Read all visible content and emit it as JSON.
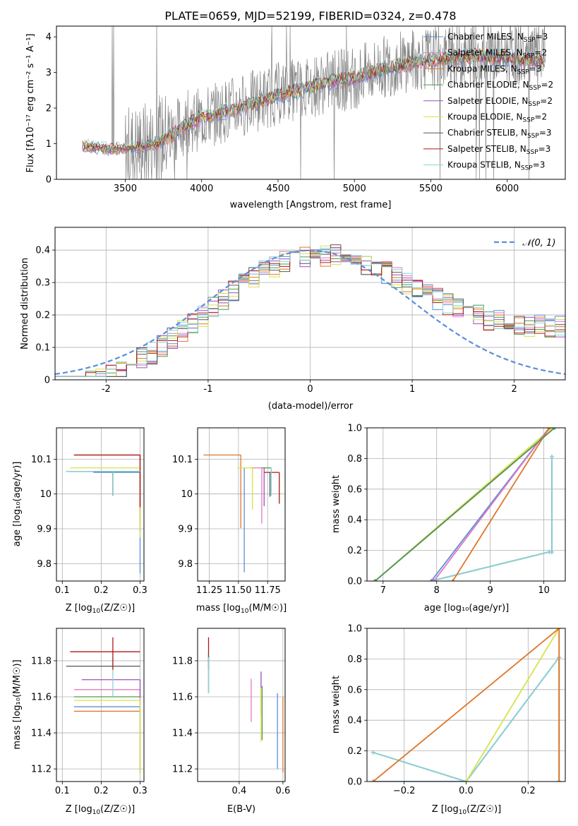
{
  "figure_title": "PLATE=0659, MJD=52199, FIBERID=0324, z=0.478",
  "series": [
    {
      "name_pre": "Chabrier MILES, N",
      "name_sub": "SSP",
      "name_post": "=3",
      "color": "#5b8fd9"
    },
    {
      "name_pre": "Salpeter MILES, N",
      "name_sub": "SSP",
      "name_post": "=2",
      "color": "#e377c2"
    },
    {
      "name_pre": "Kroupa MILES, N",
      "name_sub": "SSP",
      "name_post": "=3",
      "color": "#e0762a"
    },
    {
      "name_pre": "Chabrier ELODIE, N",
      "name_sub": "SSP",
      "name_post": "=2",
      "color": "#4f9a4f"
    },
    {
      "name_pre": "Salpeter ELODIE, N",
      "name_sub": "SSP",
      "name_post": "=2",
      "color": "#9b4fb8"
    },
    {
      "name_pre": "Kroupa ELODIE, N",
      "name_sub": "SSP",
      "name_post": "=2",
      "color": "#d7e34a"
    },
    {
      "name_pre": "Chabrier STELIB, N",
      "name_sub": "SSP",
      "name_post": "=3",
      "color": "#555555"
    },
    {
      "name_pre": "Salpeter STELIB, N",
      "name_sub": "SSP",
      "name_post": "=3",
      "color": "#b01818"
    },
    {
      "name_pre": "Kroupa STELIB, N",
      "name_sub": "SSP",
      "name_post": "=3",
      "color": "#88d4d8"
    }
  ],
  "colors": {
    "data": "#808080",
    "gaussian": "#5b8fd9",
    "grid": "#b0b0b0"
  },
  "chart_data": [
    {
      "id": "spectrum",
      "type": "line",
      "xlabel": "wavelength [Angstrom, rest frame]",
      "ylabel": "Flux [f_λ 10^-17 erg cm^-2 s^-1 A^-1]",
      "xlim": [
        3050,
        6380
      ],
      "ylim": [
        0,
        4.3
      ],
      "xticks": [
        3500,
        4000,
        4500,
        5000,
        5500,
        6000
      ],
      "yticks": [
        0,
        1,
        2,
        3,
        4
      ],
      "grid": false,
      "legend_position": "top-right",
      "data_series": {
        "name": "data",
        "x_range": [
          3220,
          6250
        ],
        "continuum": [
          [
            3220,
            0.9
          ],
          [
            3500,
            0.8
          ],
          [
            3700,
            1.0
          ],
          [
            3900,
            1.6
          ],
          [
            4000,
            1.7
          ],
          [
            4200,
            2.0
          ],
          [
            4500,
            2.4
          ],
          [
            4800,
            2.7
          ],
          [
            5000,
            2.85
          ],
          [
            5300,
            3.3
          ],
          [
            5500,
            3.4
          ],
          [
            5800,
            3.5
          ],
          [
            6000,
            3.5
          ],
          [
            6250,
            3.4
          ]
        ]
      },
      "model_continuum": [
        [
          3220,
          0.95
        ],
        [
          3400,
          0.85
        ],
        [
          3600,
          0.9
        ],
        [
          3700,
          1.0
        ],
        [
          3800,
          1.2
        ],
        [
          3900,
          1.5
        ],
        [
          4000,
          1.75
        ],
        [
          4200,
          1.95
        ],
        [
          4500,
          2.35
        ],
        [
          4800,
          2.7
        ],
        [
          5000,
          2.85
        ],
        [
          5200,
          3.1
        ],
        [
          5400,
          3.3
        ],
        [
          5600,
          3.4
        ],
        [
          5800,
          3.45
        ],
        [
          6000,
          3.4
        ],
        [
          6250,
          3.3
        ]
      ]
    },
    {
      "id": "residuals",
      "type": "histogram",
      "xlabel": "(data-model)/error",
      "ylabel": "Normed distribution",
      "xlim": [
        -2.5,
        2.5
      ],
      "ylim": [
        0,
        0.47
      ],
      "xticks": [
        -2,
        -1,
        0,
        1,
        2
      ],
      "yticks": [
        0,
        0.1,
        0.2,
        0.3,
        0.4
      ],
      "grid": true,
      "legend_position": "top-right",
      "gaussian": {
        "label": "N(0,1)",
        "mean": 0,
        "sigma": 1
      },
      "bin_width": 0.1
    },
    {
      "id": "age-vs-Z",
      "type": "errorbar",
      "xlabel_pre": "Z [log",
      "xlabel_sub": "10",
      "xlabel_post": "(Z/Z☉)]",
      "ylabel": "age [log10(age/yr)]",
      "xlim": [
        0.085,
        0.31
      ],
      "ylim": [
        9.75,
        10.19
      ],
      "xticks": [
        0.1,
        0.2,
        0.3
      ],
      "yticks": [
        9.8,
        9.9,
        10.0,
        10.1
      ],
      "grid": true,
      "points": [
        {
          "s": 0,
          "x": 0.3,
          "y": 10.062,
          "xerr": [
            0.12,
            0.0
          ],
          "yerr": [
            0.29,
            0.0
          ]
        },
        {
          "s": 1,
          "x": 0.3,
          "y": 10.112,
          "xerr": [
            0.17,
            0.0
          ],
          "yerr": [
            0.2,
            0.0
          ]
        },
        {
          "s": 2,
          "x": 0.3,
          "y": 10.112,
          "xerr": [
            0.17,
            0.0
          ],
          "yerr": [
            0.22,
            0.0
          ]
        },
        {
          "s": 3,
          "x": 0.23,
          "y": 10.065,
          "xerr": [
            0.11,
            0.07
          ],
          "yerr": [
            0.07,
            0.0
          ]
        },
        {
          "s": 4,
          "x": 0.3,
          "y": 10.065,
          "xerr": [
            0.13,
            0.0
          ],
          "yerr": [
            0.12,
            0.0
          ]
        },
        {
          "s": 5,
          "x": 0.3,
          "y": 10.075,
          "xerr": [
            0.18,
            0.0
          ],
          "yerr": [
            0.2,
            0.0
          ]
        },
        {
          "s": 6,
          "x": 0.23,
          "y": 10.065,
          "xerr": [
            0.12,
            0.07
          ],
          "yerr": [
            0.07,
            0.0
          ]
        },
        {
          "s": 7,
          "x": 0.3,
          "y": 10.112,
          "xerr": [
            0.17,
            0.0
          ],
          "yerr": [
            0.15,
            0.0
          ]
        },
        {
          "s": 8,
          "x": 0.23,
          "y": 10.065,
          "xerr": [
            0.12,
            0.07
          ],
          "yerr": [
            0.07,
            0.0
          ]
        }
      ]
    },
    {
      "id": "age-vs-mass",
      "type": "errorbar",
      "xlabel_pre": "mass [log",
      "xlabel_sub": "10",
      "xlabel_post": "(M/M☉)]",
      "ylabel": "",
      "xlim": [
        11.15,
        11.9
      ],
      "ylim": [
        9.75,
        10.19
      ],
      "xticks": [
        11.25,
        11.5,
        11.75
      ],
      "xticklabels": [
        "11.25",
        "11.50",
        "11.75"
      ],
      "yticks": [
        9.8,
        9.9,
        10.0,
        10.1
      ],
      "grid": true,
      "points": [
        {
          "s": 0,
          "x": 11.55,
          "y": 10.075,
          "xerr": [
            0.0,
            0.0
          ],
          "yerr": [
            0.3,
            0.0
          ]
        },
        {
          "s": 1,
          "x": 11.7,
          "y": 10.075,
          "xerr": [
            0.1,
            0.0
          ],
          "yerr": [
            0.16,
            0.0
          ]
        },
        {
          "s": 2,
          "x": 11.52,
          "y": 10.112,
          "xerr": [
            0.32,
            0.0
          ],
          "yerr": [
            0.21,
            0.0
          ]
        },
        {
          "s": 3,
          "x": 11.78,
          "y": 10.075,
          "xerr": [
            0.08,
            0.0
          ],
          "yerr": [
            0.08,
            0.0
          ]
        },
        {
          "s": 4,
          "x": 11.72,
          "y": 10.075,
          "xerr": [
            0.0,
            0.0
          ],
          "yerr": [
            0.11,
            0.0
          ]
        },
        {
          "s": 5,
          "x": 11.62,
          "y": 10.075,
          "xerr": [
            0.13,
            0.0
          ],
          "yerr": [
            0.12,
            0.0
          ]
        },
        {
          "s": 6,
          "x": 11.77,
          "y": 10.062,
          "xerr": [
            0.0,
            0.0
          ],
          "yerr": [
            0.07,
            0.0
          ]
        },
        {
          "s": 7,
          "x": 11.85,
          "y": 10.062,
          "xerr": [
            0.13,
            0.0
          ],
          "yerr": [
            0.09,
            0.0
          ]
        },
        {
          "s": 8,
          "x": 11.78,
          "y": 10.075,
          "xerr": [
            0.0,
            0.0
          ],
          "yerr": [
            0.08,
            0.0
          ]
        }
      ]
    },
    {
      "id": "weight-vs-age",
      "type": "line",
      "xlabel": "age [log10(age/yr)]",
      "ylabel": "mass weight",
      "xlim": [
        6.7,
        10.4
      ],
      "ylim": [
        0,
        1.0
      ],
      "xticks": [
        7,
        8,
        9,
        10
      ],
      "yticks": [
        0,
        0.2,
        0.4,
        0.6,
        0.8,
        1.0
      ],
      "yticklabels": [
        "0.0",
        "0.2",
        "0.4",
        "0.6",
        "0.8",
        "1.0"
      ],
      "grid": true,
      "lines": [
        {
          "s": 6,
          "x": [
            7.9,
            10.1,
            10.15,
            10.15
          ],
          "y": [
            0.0,
            0.19,
            0.19,
            0.81
          ]
        },
        {
          "s": 8,
          "x": [
            7.9,
            10.1,
            10.15,
            10.15
          ],
          "y": [
            0.0,
            0.19,
            0.19,
            0.81
          ]
        },
        {
          "s": 5,
          "x": [
            6.85,
            10.15
          ],
          "y": [
            0.0,
            1.0
          ]
        },
        {
          "s": 4,
          "x": [
            6.85,
            10.2
          ],
          "y": [
            0.0,
            1.0
          ]
        },
        {
          "s": 0,
          "x": [
            7.9,
            10.1
          ],
          "y": [
            0.0,
            1.0
          ]
        },
        {
          "s": 1,
          "x": [
            7.95,
            10.1
          ],
          "y": [
            0.0,
            1.0
          ]
        },
        {
          "s": 2,
          "x": [
            8.3,
            10.1
          ],
          "y": [
            0.0,
            1.0
          ]
        },
        {
          "s": 3,
          "x": [
            6.85,
            10.2
          ],
          "y": [
            0.0,
            1.0
          ]
        }
      ]
    },
    {
      "id": "mass-vs-Z",
      "type": "errorbar",
      "xlabel_pre": "Z [log",
      "xlabel_sub": "10",
      "xlabel_post": "(Z/Z☉)]",
      "ylabel": "mass [log10(M/M☉)]",
      "xlim": [
        0.085,
        0.31
      ],
      "ylim": [
        11.13,
        11.98
      ],
      "xticks": [
        0.1,
        0.2,
        0.3
      ],
      "yticks": [
        11.2,
        11.4,
        11.6,
        11.8
      ],
      "grid": true,
      "points": [
        {
          "s": 0,
          "x": 0.3,
          "y": 11.545,
          "xerr": [
            0.17,
            0.0
          ],
          "yerr": [
            0.37,
            0.0
          ]
        },
        {
          "s": 1,
          "x": 0.3,
          "y": 11.64,
          "xerr": [
            0.17,
            0.0
          ],
          "yerr": [
            0.1,
            0.0
          ]
        },
        {
          "s": 2,
          "x": 0.3,
          "y": 11.52,
          "xerr": [
            0.17,
            0.0
          ],
          "yerr": [
            0.34,
            0.06
          ]
        },
        {
          "s": 3,
          "x": 0.3,
          "y": 11.6,
          "xerr": [
            0.17,
            0.0
          ],
          "yerr": [
            0.0,
            0.0
          ]
        },
        {
          "s": 4,
          "x": 0.3,
          "y": 11.695,
          "xerr": [
            0.15,
            0.0
          ],
          "yerr": [
            0.1,
            0.0
          ]
        },
        {
          "s": 5,
          "x": 0.3,
          "y": 11.58,
          "xerr": [
            0.17,
            0.0
          ],
          "yerr": [
            0.41,
            0.0
          ]
        },
        {
          "s": 6,
          "x": 0.3,
          "y": 11.77,
          "xerr": [
            0.19,
            0.0
          ],
          "yerr": [
            0.0,
            0.0
          ]
        },
        {
          "s": 7,
          "x": 0.3,
          "y": 11.85,
          "xerr": [
            0.18,
            0.0
          ],
          "yerr": [
            0.0,
            0.0
          ]
        },
        {
          "s": 8,
          "x": 0.23,
          "y": 11.72,
          "xerr": [
            0.0,
            0.0
          ],
          "yerr": [
            0.12,
            0.1
          ]
        }
      ],
      "extra_bars": [
        {
          "s": 7,
          "x": 0.23,
          "y0": 11.75,
          "y1": 11.93
        }
      ]
    },
    {
      "id": "mass-vs-ebv",
      "type": "errorbar",
      "xlabel": "E(B-V)",
      "ylabel": "",
      "xlim": [
        0.21,
        0.61
      ],
      "ylim": [
        11.13,
        11.98
      ],
      "xticks": [
        0.4,
        0.6
      ],
      "xticklabels": [
        "0.4",
        "0.6"
      ],
      "yticks": [
        11.2,
        11.4,
        11.6,
        11.8
      ],
      "grid": true,
      "vbars": [
        {
          "s": 7,
          "x": 0.26,
          "y0": 11.75,
          "y1": 11.93
        },
        {
          "s": 6,
          "x": 0.26,
          "y0": 11.62,
          "y1": 11.84
        },
        {
          "s": 8,
          "x": 0.26,
          "y0": 11.62,
          "y1": 11.82
        },
        {
          "s": 1,
          "x": 0.455,
          "y0": 11.46,
          "y1": 11.7
        },
        {
          "s": 4,
          "x": 0.5,
          "y0": 11.5,
          "y1": 11.74
        },
        {
          "s": 5,
          "x": 0.5,
          "y0": 11.35,
          "y1": 11.65
        },
        {
          "s": 3,
          "x": 0.505,
          "y0": 11.36,
          "y1": 11.66
        },
        {
          "s": 0,
          "x": 0.575,
          "y0": 11.2,
          "y1": 11.62
        },
        {
          "s": 2,
          "x": 0.6,
          "y0": 11.18,
          "y1": 11.6
        }
      ]
    },
    {
      "id": "weight-vs-Z",
      "type": "line",
      "xlabel_pre": "Z [log",
      "xlabel_sub": "10",
      "xlabel_post": "(Z/Z☉)]",
      "ylabel": "mass weight",
      "xlim": [
        -0.32,
        0.32
      ],
      "ylim": [
        0,
        1.0
      ],
      "xticks": [
        -0.2,
        0.0,
        0.2
      ],
      "xticklabels": [
        "−0.2",
        "0.0",
        "0.2"
      ],
      "yticks": [
        0,
        0.2,
        0.4,
        0.6,
        0.8,
        1.0
      ],
      "yticklabels": [
        "0.0",
        "0.2",
        "0.4",
        "0.6",
        "0.8",
        "1.0"
      ],
      "grid": true,
      "lines": [
        {
          "s": 6,
          "x": [
            -0.3,
            0.0,
            0.3,
            0.3
          ],
          "y": [
            0.19,
            0.0,
            0.81,
            0.0
          ]
        },
        {
          "s": 8,
          "x": [
            -0.3,
            0.0,
            0.3,
            0.3
          ],
          "y": [
            0.19,
            0.0,
            0.81,
            0.0
          ]
        },
        {
          "s": 0,
          "x": [
            -0.3,
            0.0
          ],
          "y": [
            0.0,
            0.0
          ]
        },
        {
          "s": 5,
          "x": [
            0.0,
            0.3,
            0.3
          ],
          "y": [
            0.0,
            1.0,
            0.0
          ]
        },
        {
          "s": 2,
          "x": [
            -0.3,
            0.3,
            0.3
          ],
          "y": [
            0.0,
            1.0,
            0.0
          ]
        }
      ]
    }
  ]
}
